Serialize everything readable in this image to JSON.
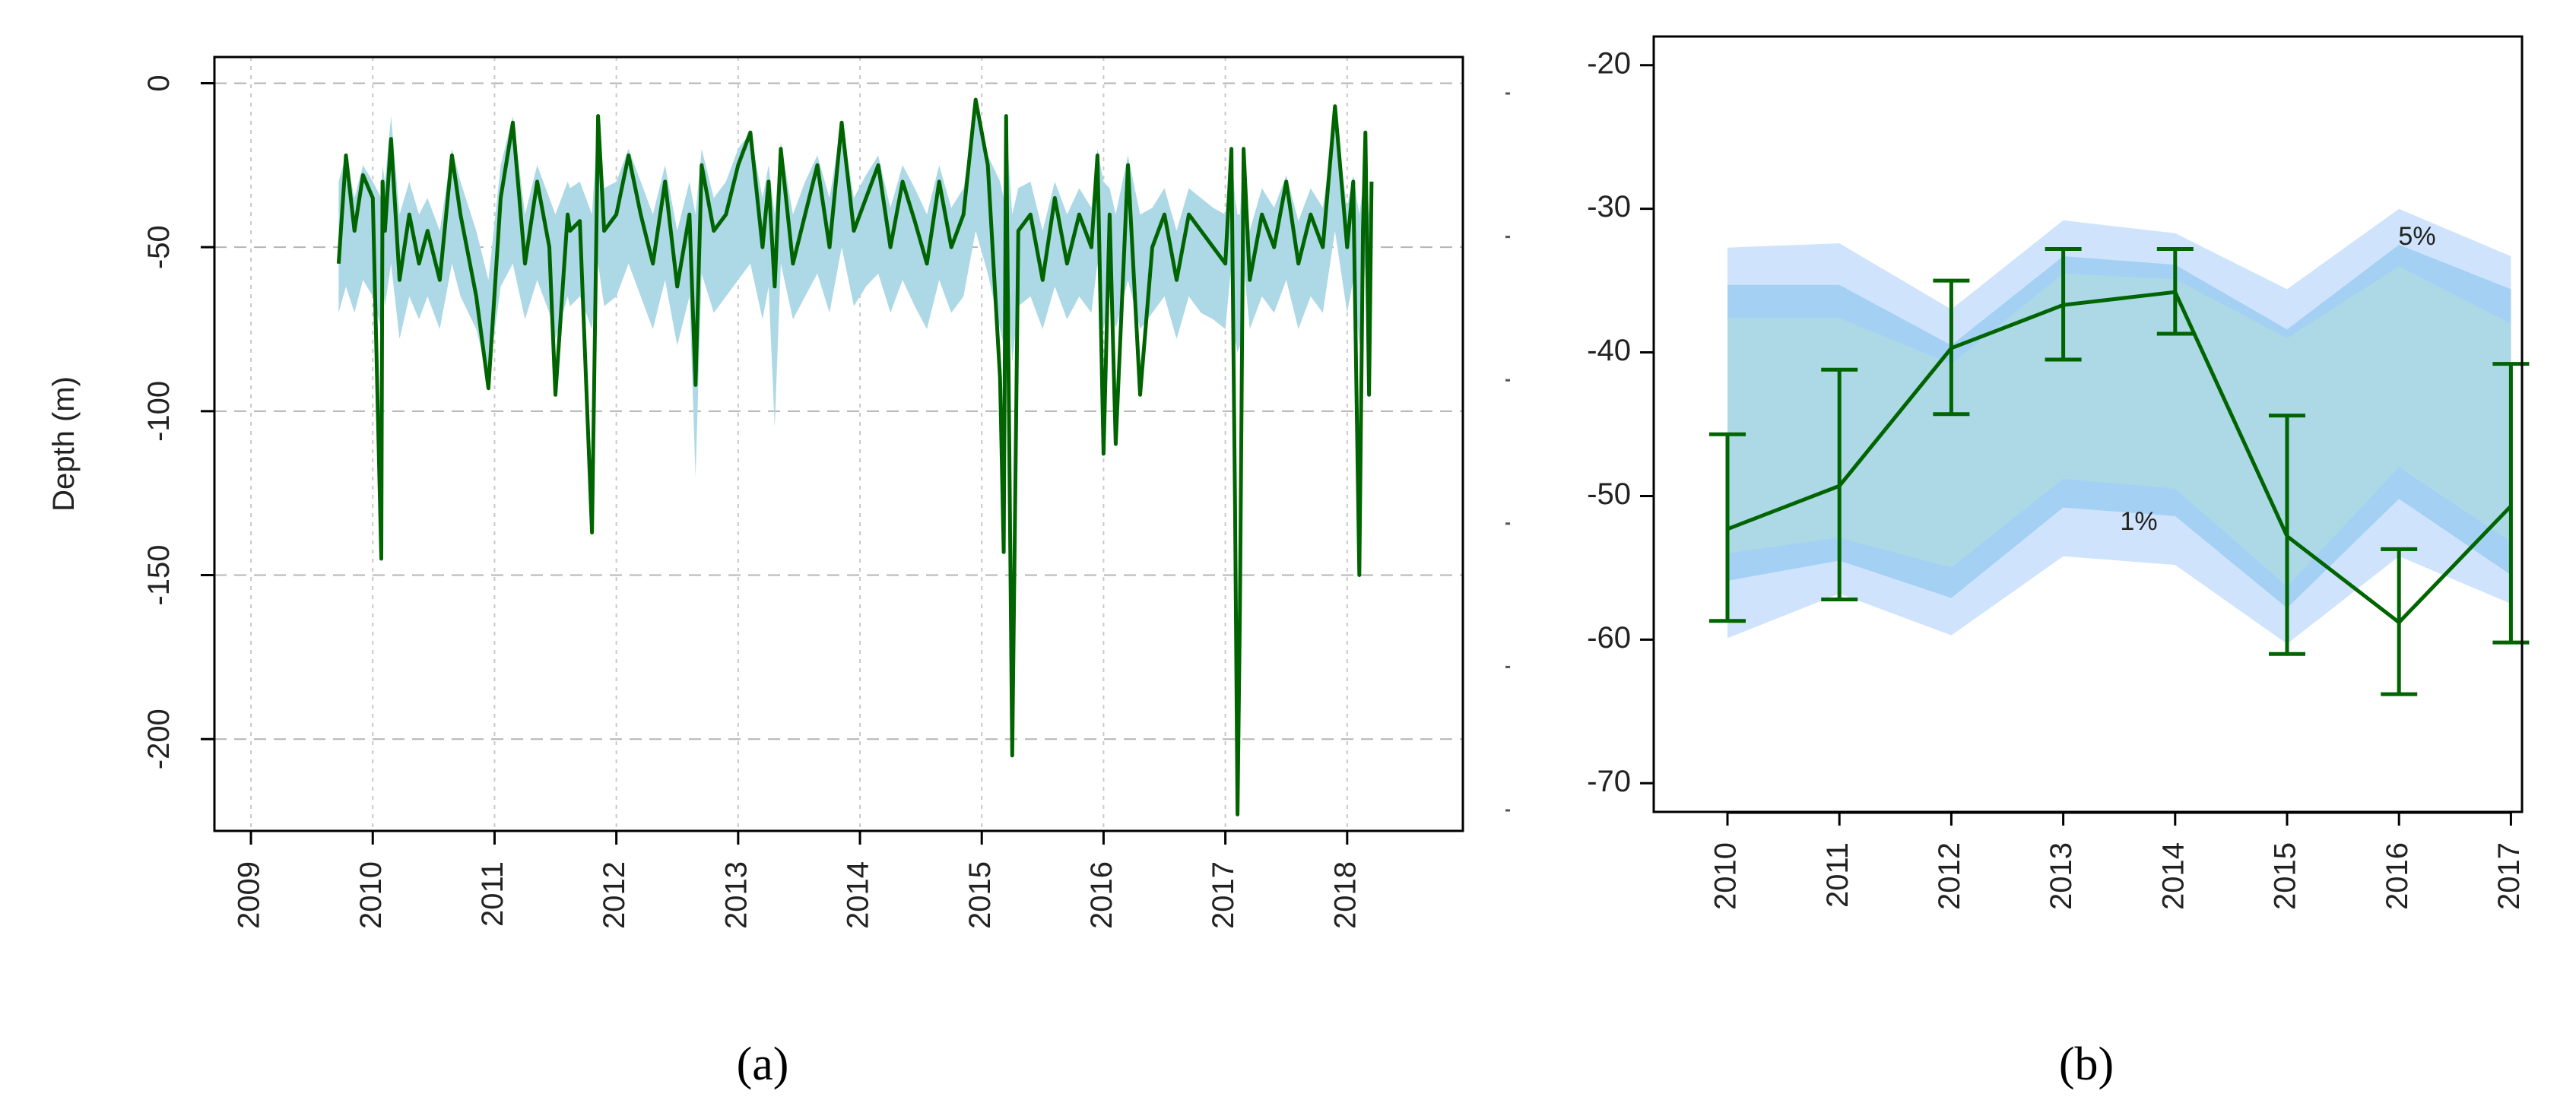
{
  "chart_data": [
    {
      "type": "line",
      "panel_label": "(a)",
      "ylabel": "Depth (m)",
      "grid": true,
      "xlim": [
        2008.7,
        2018.95
      ],
      "ylim": [
        -228,
        8
      ],
      "x_ticks": [
        2009,
        2010,
        2011,
        2012,
        2013,
        2014,
        2015,
        2016,
        2017,
        2018
      ],
      "x_tick_labels": [
        "2009",
        "2010",
        "2011",
        "2012",
        "2013",
        "2014",
        "2015",
        "2016",
        "2017",
        "2018"
      ],
      "y_ticks": [
        0,
        -50,
        -100,
        -150,
        -200
      ],
      "y_tick_labels": [
        "0",
        "-50",
        "-100",
        "-150",
        "-200"
      ],
      "colors": {
        "series": "#006400",
        "band": "#add8e6"
      },
      "series": [
        {
          "x": [
            2009.72,
            2009.78,
            2009.85,
            2009.92,
            2010.0,
            2010.07,
            2010.08,
            2010.1,
            2010.15,
            2010.22,
            2010.3,
            2010.38,
            2010.45,
            2010.55,
            2010.65,
            2010.72,
            2010.85,
            2010.95,
            2011.05,
            2011.15,
            2011.25,
            2011.35,
            2011.45,
            2011.5,
            2011.6,
            2011.62,
            2011.7,
            2011.8,
            2011.85,
            2011.9,
            2012.0,
            2012.1,
            2012.2,
            2012.3,
            2012.4,
            2012.5,
            2012.6,
            2012.65,
            2012.7,
            2012.8,
            2012.9,
            2013.0,
            2013.1,
            2013.2,
            2013.25,
            2013.3,
            2013.35,
            2013.45,
            2013.55,
            2013.65,
            2013.75,
            2013.85,
            2013.95,
            2014.05,
            2014.15,
            2014.25,
            2014.35,
            2014.45,
            2014.55,
            2014.65,
            2014.75,
            2014.85,
            2014.95,
            2015.05,
            2015.15,
            2015.18,
            2015.2,
            2015.25,
            2015.3,
            2015.4,
            2015.5,
            2015.6,
            2015.7,
            2015.8,
            2015.9,
            2015.95,
            2016.0,
            2016.05,
            2016.1,
            2016.2,
            2016.3,
            2016.4,
            2016.5,
            2016.6,
            2016.7,
            2016.8,
            2016.9,
            2017.0,
            2017.05,
            2017.08,
            2017.1,
            2017.12,
            2017.15,
            2017.2,
            2017.3,
            2017.4,
            2017.5,
            2017.6,
            2017.7,
            2017.8,
            2017.9,
            2018.0,
            2018.05,
            2018.1,
            2018.13,
            2018.15,
            2018.18,
            2018.2
          ],
          "values": [
            -55,
            -22,
            -45,
            -28,
            -35,
            -145,
            -30,
            -45,
            -17,
            -60,
            -40,
            -55,
            -45,
            -60,
            -22,
            -40,
            -65,
            -93,
            -35,
            -12,
            -55,
            -30,
            -50,
            -95,
            -40,
            -45,
            -42,
            -137,
            -10,
            -45,
            -40,
            -22,
            -40,
            -55,
            -30,
            -62,
            -40,
            -92,
            -25,
            -45,
            -40,
            -25,
            -15,
            -50,
            -30,
            -62,
            -20,
            -55,
            -40,
            -25,
            -50,
            -12,
            -45,
            -35,
            -25,
            -50,
            -30,
            -42,
            -55,
            -30,
            -50,
            -40,
            -5,
            -25,
            -90,
            -143,
            -10,
            -205,
            -45,
            -40,
            -60,
            -35,
            -55,
            -40,
            -50,
            -22,
            -113,
            -40,
            -110,
            -25,
            -95,
            -50,
            -40,
            -60,
            -40,
            -45,
            -50,
            -55,
            -20,
            -130,
            -223,
            -160,
            -20,
            -60,
            -40,
            -50,
            -30,
            -55,
            -40,
            -50,
            -7,
            -50,
            -30,
            -150,
            -45,
            -15,
            -95,
            -30
          ],
          "band_upper": [
            -30,
            -22,
            -35,
            -25,
            -30,
            -35,
            -25,
            -30,
            -10,
            -40,
            -30,
            -40,
            -35,
            -45,
            -20,
            -30,
            -45,
            -60,
            -25,
            -10,
            -40,
            -25,
            -35,
            -40,
            -30,
            -32,
            -30,
            -40,
            -10,
            -32,
            -30,
            -20,
            -30,
            -40,
            -25,
            -45,
            -30,
            -40,
            -20,
            -35,
            -30,
            -20,
            -15,
            -35,
            -25,
            -40,
            -18,
            -40,
            -30,
            -22,
            -35,
            -12,
            -35,
            -28,
            -22,
            -38,
            -25,
            -32,
            -40,
            -25,
            -38,
            -32,
            -8,
            -22,
            -30,
            -35,
            -12,
            -40,
            -32,
            -30,
            -45,
            -30,
            -40,
            -32,
            -38,
            -20,
            -30,
            -32,
            -40,
            -22,
            -40,
            -38,
            -32,
            -45,
            -32,
            -35,
            -38,
            -40,
            -20,
            -35,
            -40,
            -40,
            -20,
            -45,
            -32,
            -38,
            -28,
            -42,
            -32,
            -38,
            -10,
            -38,
            -28,
            -40,
            -32,
            -20,
            -40,
            -30
          ],
          "band_lower": [
            -70,
            -62,
            -70,
            -60,
            -65,
            -75,
            -60,
            -68,
            -55,
            -78,
            -65,
            -72,
            -65,
            -75,
            -55,
            -65,
            -75,
            -90,
            -62,
            -55,
            -72,
            -60,
            -70,
            -78,
            -65,
            -68,
            -65,
            -75,
            -55,
            -68,
            -65,
            -55,
            -65,
            -75,
            -60,
            -80,
            -65,
            -120,
            -58,
            -70,
            -65,
            -60,
            -55,
            -72,
            -62,
            -105,
            -55,
            -72,
            -65,
            -58,
            -70,
            -50,
            -68,
            -62,
            -58,
            -70,
            -60,
            -68,
            -75,
            -60,
            -70,
            -65,
            -45,
            -58,
            -75,
            -80,
            -50,
            -85,
            -68,
            -65,
            -75,
            -62,
            -72,
            -65,
            -70,
            -55,
            -75,
            -65,
            -75,
            -60,
            -75,
            -70,
            -65,
            -78,
            -65,
            -70,
            -72,
            -75,
            -55,
            -78,
            -82,
            -80,
            -55,
            -75,
            -65,
            -70,
            -60,
            -75,
            -65,
            -70,
            -45,
            -70,
            -60,
            -80,
            -65,
            -55,
            -75,
            -62
          ]
        }
      ]
    },
    {
      "type": "line",
      "panel_label": "(b)",
      "grid": false,
      "ylim": [
        -72,
        -18
      ],
      "categories": [
        "2010",
        "2011",
        "2012",
        "2013",
        "2014",
        "2015",
        "2016",
        "2017"
      ],
      "y_ticks": [
        -20,
        -30,
        -40,
        -50,
        -60,
        -70
      ],
      "y_tick_labels": [
        "-20",
        "-30",
        "-40",
        "-50",
        "-60",
        "-70"
      ],
      "colors": {
        "series": "#006400",
        "band_5": "#cfe4fc",
        "band_1": "#a4d0f4",
        "band_core": "#add8e6"
      },
      "annotations": [
        "5%",
        "1%"
      ],
      "series": [
        {
          "values": [
            -52.3,
            -49.3,
            -39.7,
            -36.7,
            -35.8,
            -52.8,
            -58.8,
            -50.7
          ],
          "error_low": [
            -58.7,
            -57.2,
            -44.3,
            -40.5,
            -38.7,
            -61.0,
            -63.8,
            -60.2
          ],
          "error_high": [
            -45.7,
            -41.2,
            -35.0,
            -32.8,
            -32.8,
            -44.4,
            -53.7,
            -40.8
          ]
        }
      ],
      "bands": {
        "outer_upper": [
          -32.7,
          -32.4,
          -37.0,
          -30.8,
          -31.7,
          -35.6,
          -30.0,
          -33.3
        ],
        "outer_lower": [
          -59.9,
          -56.8,
          -59.7,
          -54.2,
          -54.8,
          -60.3,
          -54.2,
          -57.5
        ],
        "mid_upper": [
          -35.3,
          -35.3,
          -39.5,
          -33.3,
          -33.9,
          -38.4,
          -32.5,
          -35.6
        ],
        "mid_lower": [
          -55.9,
          -54.5,
          -57.1,
          -50.8,
          -51.4,
          -57.8,
          -50.2,
          -55.5
        ],
        "core_upper": [
          -37.6,
          -37.6,
          -40.8,
          -34.5,
          -34.9,
          -39.0,
          -34.0,
          -38.0
        ],
        "core_lower": [
          -54.0,
          -52.9,
          -55.0,
          -48.8,
          -49.5,
          -56.3,
          -48.0,
          -53.2
        ]
      }
    }
  ]
}
